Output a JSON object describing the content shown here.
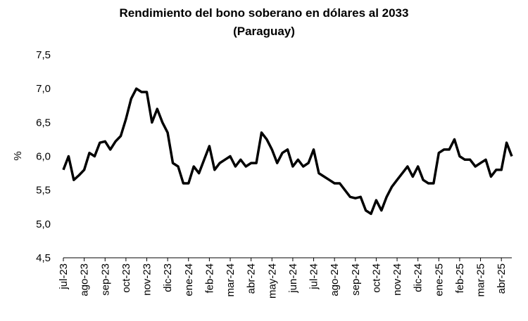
{
  "chart_data": {
    "type": "line",
    "title": "Rendimiento del bono soberano en dólares al 2033",
    "subtitle": "(Paraguay)",
    "ylabel": "%",
    "color": "#000000",
    "categories": [
      "jul-23",
      null,
      null,
      null,
      "ago-23",
      null,
      null,
      null,
      "sep-23",
      null,
      null,
      null,
      "oct-23",
      null,
      null,
      null,
      "nov-23",
      null,
      null,
      null,
      "dic-23",
      null,
      null,
      null,
      "ene-24",
      null,
      null,
      null,
      "feb-24",
      null,
      null,
      null,
      "mar-24",
      null,
      null,
      null,
      "abr-24",
      null,
      null,
      null,
      "may-24",
      null,
      null,
      null,
      "jun-24",
      null,
      null,
      null,
      "jul-24",
      null,
      null,
      null,
      "ago-24",
      null,
      null,
      null,
      "sep-24",
      null,
      null,
      null,
      "oct-24",
      null,
      null,
      null,
      "nov-24",
      null,
      null,
      null,
      "dic-24",
      null,
      null,
      null,
      "ene-25",
      null,
      null,
      null,
      "feb-25",
      null,
      null,
      null,
      "mar-25",
      null,
      null,
      null,
      "abr-25",
      null,
      null
    ],
    "values": [
      5.8,
      6.0,
      5.65,
      5.72,
      5.8,
      6.05,
      6.0,
      6.2,
      6.22,
      6.1,
      6.22,
      6.3,
      6.55,
      6.85,
      7.0,
      6.95,
      6.95,
      6.5,
      6.7,
      6.5,
      6.35,
      5.9,
      5.85,
      5.6,
      5.6,
      5.85,
      5.75,
      5.95,
      6.15,
      5.8,
      5.9,
      5.95,
      6.0,
      5.85,
      5.95,
      5.85,
      5.9,
      5.9,
      6.35,
      6.25,
      6.1,
      5.9,
      6.05,
      6.1,
      5.85,
      5.95,
      5.85,
      5.9,
      6.1,
      5.75,
      5.7,
      5.65,
      5.6,
      5.6,
      5.5,
      5.4,
      5.38,
      5.4,
      5.2,
      5.15,
      5.35,
      5.2,
      5.4,
      5.55,
      5.65,
      5.75,
      5.85,
      5.7,
      5.85,
      5.65,
      5.6,
      5.6,
      6.05,
      6.1,
      6.1,
      6.25,
      6.0,
      5.95,
      5.95,
      5.85,
      5.9,
      5.95,
      5.7,
      5.8,
      5.8,
      6.2,
      6.0
    ],
    "ylim": [
      4.5,
      7.5
    ],
    "yticks": [
      {
        "value": 4.5,
        "label": "4,5"
      },
      {
        "value": 5.0,
        "label": "5,0"
      },
      {
        "value": 5.5,
        "label": "5,5"
      },
      {
        "value": 6.0,
        "label": "6,0"
      },
      {
        "value": 6.5,
        "label": "6,5"
      },
      {
        "value": 7.0,
        "label": "7,0"
      },
      {
        "value": 7.5,
        "label": "7,5"
      }
    ],
    "grid": false
  }
}
